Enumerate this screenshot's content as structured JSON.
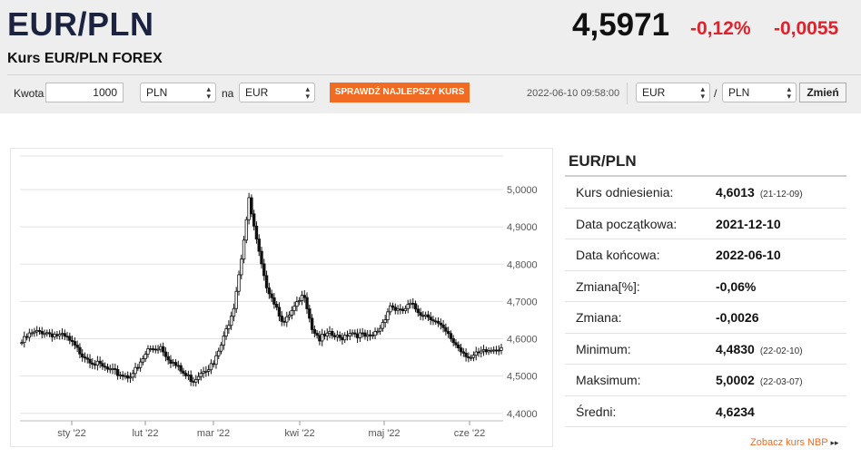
{
  "header": {
    "pair": "EUR/PLN",
    "subtitle": "Kurs EUR/PLN FOREX",
    "price": "4,5971",
    "change_pct": "-0,12%",
    "change_abs": "-0,0055"
  },
  "converter": {
    "amount_label": "Kwota",
    "amount_value": "1000",
    "from_currency": "PLN",
    "to_label": "na",
    "to_currency": "EUR",
    "best_rate_button": "SPRAWDŹ NAJLEPSZY KURS",
    "timestamp": "2022-06-10 09:58:00",
    "pair_from": "EUR",
    "pair_sep": "/",
    "pair_to": "PLN",
    "change_button": "Zmień"
  },
  "stats": {
    "title": "EUR/PLN",
    "rows": [
      {
        "label": "Kurs odniesienia:",
        "value": "4,6013",
        "date": "(21-12-09)"
      },
      {
        "label": "Data początkowa:",
        "value": "2021-12-10",
        "date": ""
      },
      {
        "label": "Data końcowa:",
        "value": "2022-06-10",
        "date": ""
      },
      {
        "label": "Zmiana[%]:",
        "value": "-0,06%",
        "date": ""
      },
      {
        "label": "Zmiana:",
        "value": "-0,0026",
        "date": ""
      },
      {
        "label": "Minimum:",
        "value": "4,4830",
        "date": "(22-02-10)"
      },
      {
        "label": "Maksimum:",
        "value": "5,0002",
        "date": "(22-03-07)"
      },
      {
        "label": "Średni:",
        "value": "4,6234",
        "date": ""
      }
    ],
    "nbp_link": "Zobacz kurs NBP",
    "nbp_arrow": "▸▸"
  },
  "chart_data": {
    "type": "candlestick",
    "title": "",
    "xlabel": "",
    "ylabel": "",
    "ylim": [
      4.38,
      5.09
    ],
    "y_ticks": [
      "4,4000",
      "4,5000",
      "4,6000",
      "4,7000",
      "4,8000",
      "4,9000",
      "5,0000"
    ],
    "y_tick_values": [
      4.4,
      4.5,
      4.6,
      4.7,
      4.8,
      4.9,
      5.0
    ],
    "x_ticks": [
      "sty '22",
      "lut '22",
      "mar '22",
      "kwi '22",
      "maj '22",
      "cze '22"
    ],
    "grid": true,
    "series": [
      {
        "name": "",
        "anchors": [
          [
            0,
            4.59
          ],
          [
            3,
            4.61
          ],
          [
            8,
            4.62
          ],
          [
            14,
            4.61
          ],
          [
            18,
            4.6
          ],
          [
            22,
            4.57
          ],
          [
            30,
            4.53
          ],
          [
            36,
            4.51
          ],
          [
            42,
            4.5
          ],
          [
            46,
            4.52
          ],
          [
            50,
            4.57
          ],
          [
            55,
            4.58
          ],
          [
            58,
            4.55
          ],
          [
            62,
            4.52
          ],
          [
            65,
            4.5
          ],
          [
            68,
            4.49
          ],
          [
            72,
            4.52
          ],
          [
            76,
            4.53
          ],
          [
            80,
            4.6
          ],
          [
            84,
            4.69
          ],
          [
            87,
            4.82
          ],
          [
            90,
            4.97
          ],
          [
            93,
            4.86
          ],
          [
            96,
            4.76
          ],
          [
            100,
            4.7
          ],
          [
            104,
            4.64
          ],
          [
            108,
            4.68
          ],
          [
            112,
            4.72
          ],
          [
            115,
            4.63
          ],
          [
            118,
            4.6
          ],
          [
            122,
            4.61
          ],
          [
            126,
            4.6
          ],
          [
            130,
            4.62
          ],
          [
            134,
            4.61
          ],
          [
            138,
            4.6
          ],
          [
            142,
            4.63
          ],
          [
            146,
            4.69
          ],
          [
            150,
            4.67
          ],
          [
            154,
            4.69
          ],
          [
            158,
            4.67
          ],
          [
            162,
            4.66
          ],
          [
            166,
            4.63
          ],
          [
            170,
            4.6
          ],
          [
            174,
            4.57
          ],
          [
            178,
            4.55
          ],
          [
            182,
            4.56
          ],
          [
            186,
            4.57
          ],
          [
            190,
            4.58
          ]
        ]
      }
    ]
  }
}
